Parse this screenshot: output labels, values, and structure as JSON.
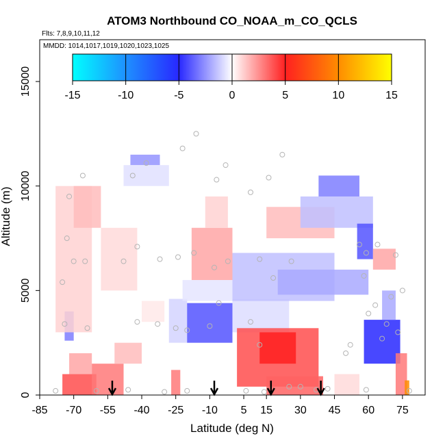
{
  "chart_data": {
    "type": "heatmap",
    "title": "ATOM3 Northbound CO_NOAA_m_CO_QCLS",
    "subtitle_flights": "Flts: 7,8,9,10,11,12",
    "subtitle_dates": "MMDD: 1014,1017,1019,1020,1023,1025",
    "xlabel": "Latitude (deg N)",
    "ylabel": "Altitude (m)",
    "xlim": [
      -85,
      85
    ],
    "ylim": [
      0,
      17000
    ],
    "x_ticks": [
      -85,
      -70,
      -55,
      -40,
      -25,
      -10,
      5,
      15,
      30,
      45,
      60,
      75
    ],
    "y_ticks": [
      0,
      5000,
      10000,
      15000
    ],
    "colorbar": {
      "min": -15,
      "max": 15,
      "ticks": [
        -15,
        -10,
        -5,
        0,
        5,
        10,
        15
      ],
      "stops": [
        {
          "value": -15,
          "color": "#00ffff"
        },
        {
          "value": -10,
          "color": "#1e90ff"
        },
        {
          "value": -5,
          "color": "#2828ff"
        },
        {
          "value": 0,
          "color": "#ffffff"
        },
        {
          "value": 5,
          "color": "#ff2020"
        },
        {
          "value": 10,
          "color": "#ff8c00"
        },
        {
          "value": 15,
          "color": "#ffff00"
        }
      ]
    },
    "regions": [
      {
        "lat": [
          -75,
          -60
        ],
        "alt": [
          0,
          1000
        ],
        "value": 4
      },
      {
        "lat": [
          -72,
          -62
        ],
        "alt": [
          1000,
          2000
        ],
        "value": 2
      },
      {
        "lat": [
          -62,
          -48
        ],
        "alt": [
          0,
          1500
        ],
        "value": 3
      },
      {
        "lat": [
          -52,
          -40
        ],
        "alt": [
          1500,
          2500
        ],
        "value": 1.5
      },
      {
        "lat": [
          -74,
          -70
        ],
        "alt": [
          2600,
          4000
        ],
        "value": -3
      },
      {
        "lat": [
          -78,
          -62
        ],
        "alt": [
          3000,
          10000
        ],
        "value": 1
      },
      {
        "lat": [
          -70,
          -58
        ],
        "alt": [
          8000,
          10000
        ],
        "value": 1.5
      },
      {
        "lat": [
          -58,
          -42
        ],
        "alt": [
          5000,
          8000
        ],
        "value": 0.8
      },
      {
        "lat": [
          -45,
          -32
        ],
        "alt": [
          11000,
          11500
        ],
        "value": -2.5
      },
      {
        "lat": [
          -48,
          -28
        ],
        "alt": [
          10000,
          11000
        ],
        "value": -0.7
      },
      {
        "lat": [
          -27,
          -23
        ],
        "alt": [
          0,
          1200
        ],
        "value": 3
      },
      {
        "lat": [
          -28,
          -20
        ],
        "alt": [
          2500,
          4600
        ],
        "value": -1
      },
      {
        "lat": [
          -20,
          0
        ],
        "alt": [
          2500,
          4400
        ],
        "value": -4
      },
      {
        "lat": [
          -18,
          0
        ],
        "alt": [
          5500,
          8000
        ],
        "value": 2
      },
      {
        "lat": [
          -12,
          -2
        ],
        "alt": [
          8000,
          9500
        ],
        "value": 1
      },
      {
        "lat": [
          -22,
          0
        ],
        "alt": [
          4500,
          5500
        ],
        "value": -0.6
      },
      {
        "lat": [
          0,
          25
        ],
        "alt": [
          3000,
          4600
        ],
        "value": -0.8
      },
      {
        "lat": [
          2,
          38
        ],
        "alt": [
          400,
          3200
        ],
        "value": 4
      },
      {
        "lat": [
          12,
          28
        ],
        "alt": [
          1500,
          3000
        ],
        "value": 5
      },
      {
        "lat": [
          15,
          40
        ],
        "alt": [
          0,
          900
        ],
        "value": 3.5
      },
      {
        "lat": [
          0,
          45
        ],
        "alt": [
          4500,
          6800
        ],
        "value": -1.5
      },
      {
        "lat": [
          20,
          60
        ],
        "alt": [
          4800,
          6000
        ],
        "value": -2
      },
      {
        "lat": [
          15,
          45
        ],
        "alt": [
          7500,
          9000
        ],
        "value": 1.5
      },
      {
        "lat": [
          30,
          62
        ],
        "alt": [
          8000,
          9500
        ],
        "value": -1.5
      },
      {
        "lat": [
          38,
          56
        ],
        "alt": [
          9500,
          10500
        ],
        "value": -3
      },
      {
        "lat": [
          55,
          62
        ],
        "alt": [
          6500,
          8200
        ],
        "value": -4
      },
      {
        "lat": [
          62,
          72
        ],
        "alt": [
          6000,
          7000
        ],
        "value": 2
      },
      {
        "lat": [
          58,
          74
        ],
        "alt": [
          1500,
          3600
        ],
        "value": -5
      },
      {
        "lat": [
          66,
          72
        ],
        "alt": [
          3600,
          5000
        ],
        "value": -2
      },
      {
        "lat": [
          72,
          77
        ],
        "alt": [
          0,
          2000
        ],
        "value": 3
      },
      {
        "lat": [
          76,
          78
        ],
        "alt": [
          0,
          700
        ],
        "value": 10
      },
      {
        "lat": [
          45,
          56
        ],
        "alt": [
          0,
          1000
        ],
        "value": 0.8
      },
      {
        "lat": [
          -40,
          -30
        ],
        "alt": [
          3500,
          4500
        ],
        "value": 0.5
      }
    ],
    "sample_points": [
      [
        -75,
        5400
      ],
      [
        -74,
        3400
      ],
      [
        -73,
        7500
      ],
      [
        -72,
        9500
      ],
      [
        -70,
        6400
      ],
      [
        -66,
        10500
      ],
      [
        -65,
        6400
      ],
      [
        -64,
        3200
      ],
      [
        -48,
        6400
      ],
      [
        -44,
        10500
      ],
      [
        -42,
        7100
      ],
      [
        -42,
        3500
      ],
      [
        -38,
        11100
      ],
      [
        -33,
        3400
      ],
      [
        -32,
        6500
      ],
      [
        -25,
        3200
      ],
      [
        -24,
        6600
      ],
      [
        -22,
        11800
      ],
      [
        -20,
        3100
      ],
      [
        -17,
        6800
      ],
      [
        -16,
        12500
      ],
      [
        -10,
        3300
      ],
      [
        -8,
        6100
      ],
      [
        -7,
        10300
      ],
      [
        -6,
        4400
      ],
      [
        -3,
        11000
      ],
      [
        -2,
        6400
      ],
      [
        8,
        9700
      ],
      [
        8,
        3500
      ],
      [
        12,
        6500
      ],
      [
        12,
        2400
      ],
      [
        16,
        10400
      ],
      [
        18,
        5600
      ],
      [
        22,
        11500
      ],
      [
        26,
        6400
      ],
      [
        30,
        400
      ],
      [
        42,
        300
      ],
      [
        50,
        2000
      ],
      [
        52,
        2400
      ],
      [
        56,
        7200
      ],
      [
        58,
        5700
      ],
      [
        59,
        6800
      ],
      [
        60,
        3900
      ],
      [
        63,
        4300
      ],
      [
        64,
        7200
      ],
      [
        66,
        2700
      ],
      [
        68,
        3400
      ],
      [
        70,
        4700
      ],
      [
        72,
        6700
      ],
      [
        73,
        3000
      ],
      [
        75,
        5000
      ],
      [
        -78,
        200
      ],
      [
        -60,
        200
      ],
      [
        -46,
        250
      ],
      [
        -30,
        150
      ],
      [
        -20,
        200
      ],
      [
        6,
        200
      ],
      [
        14,
        150
      ],
      [
        25,
        400
      ],
      [
        37,
        250
      ],
      [
        59,
        250
      ],
      [
        78,
        200
      ]
    ],
    "flight_markers_lat": [
      -53,
      -8,
      17,
      39
    ]
  }
}
